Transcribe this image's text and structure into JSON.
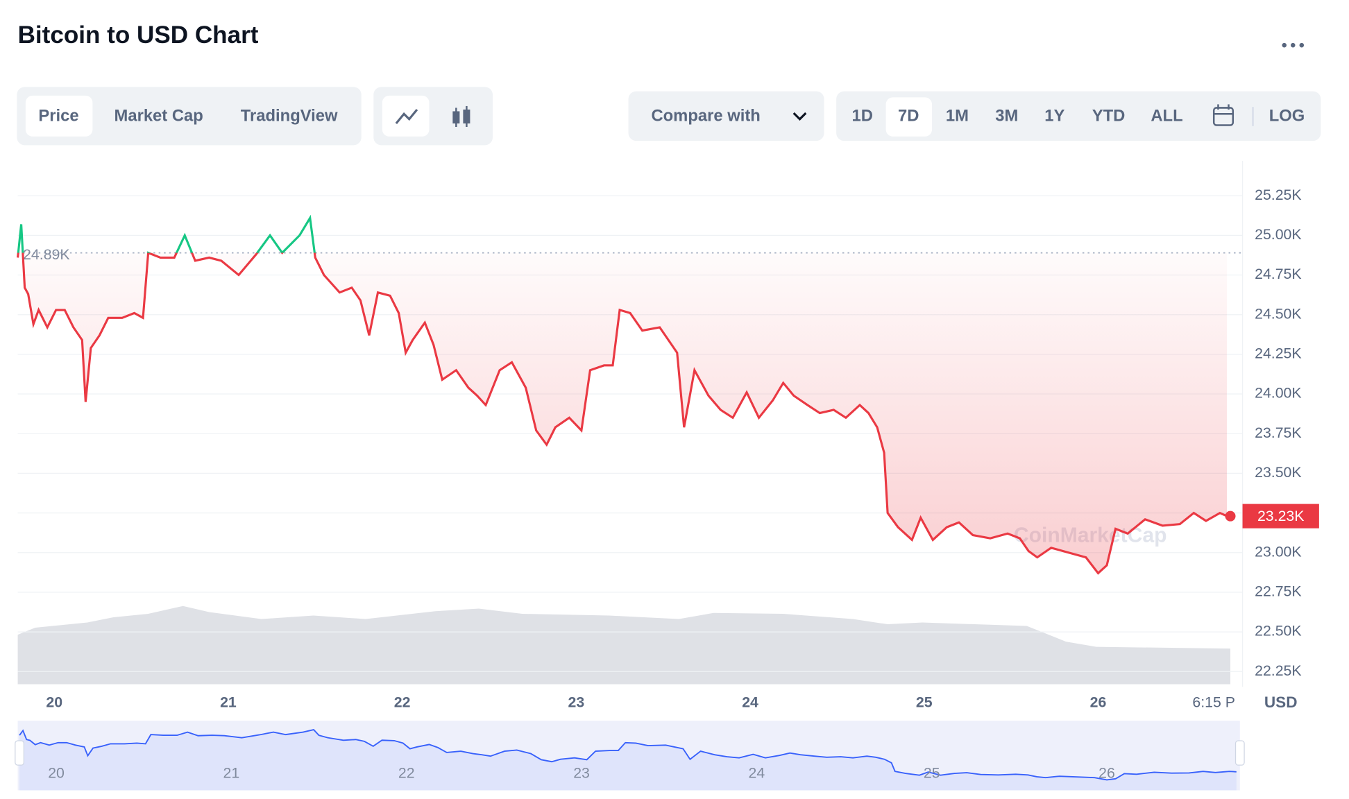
{
  "header": {
    "title": "Bitcoin to USD Chart"
  },
  "tabs": [
    "Price",
    "Market Cap",
    "TradingView"
  ],
  "compare": "Compare with",
  "ranges": [
    "1D",
    "7D",
    "1M",
    "3M",
    "1Y",
    "YTD",
    "ALL"
  ],
  "log": "LOG",
  "watermark": "CoinMarketCap",
  "chart_data": {
    "type": "line",
    "x": [
      19.79,
      19.81,
      19.83,
      19.85,
      19.88,
      19.91,
      19.96,
      20.01,
      20.06,
      20.11,
      20.16,
      20.18,
      20.21,
      20.26,
      20.31,
      20.39,
      20.46,
      20.51,
      20.54,
      20.61,
      20.69,
      20.75,
      20.81,
      20.89,
      20.96,
      21.06,
      21.16,
      21.24,
      21.31,
      21.41,
      21.47,
      21.5,
      21.55,
      21.64,
      21.71,
      21.76,
      21.81,
      21.86,
      21.93,
      21.98,
      22.02,
      22.06,
      22.13,
      22.18,
      22.23,
      22.31,
      22.38,
      22.43,
      22.48,
      22.56,
      22.63,
      22.71,
      22.77,
      22.83,
      22.88,
      22.96,
      23.03,
      23.08,
      23.16,
      23.21,
      23.25,
      23.31,
      23.38,
      23.48,
      23.53,
      23.58,
      23.62,
      23.68,
      23.76,
      23.83,
      23.9,
      23.98,
      24.05,
      24.13,
      24.19,
      24.25,
      24.33,
      24.4,
      24.48,
      24.55,
      24.63,
      24.68,
      24.73,
      24.77,
      24.79,
      24.85,
      24.93,
      24.98,
      25.05,
      25.13,
      25.2,
      25.28,
      25.38,
      25.48,
      25.55,
      25.6,
      25.65,
      25.73,
      25.83,
      25.93,
      26.0,
      26.05,
      26.1,
      26.17,
      26.27,
      26.37,
      26.47,
      26.55,
      26.62,
      26.7,
      26.74
    ],
    "values": [
      24860,
      25070,
      24670,
      24630,
      24440,
      24530,
      24420,
      24530,
      24530,
      24420,
      24340,
      23950,
      24290,
      24370,
      24480,
      24480,
      24510,
      24480,
      24890,
      24860,
      24860,
      25000,
      24840,
      24860,
      24840,
      24750,
      24880,
      25000,
      24890,
      25000,
      25110,
      24860,
      24750,
      24640,
      24670,
      24590,
      24370,
      24640,
      24620,
      24510,
      24260,
      24340,
      24450,
      24310,
      24090,
      24150,
      24040,
      23990,
      23930,
      24150,
      24200,
      24040,
      23770,
      23680,
      23790,
      23850,
      23770,
      24150,
      24180,
      24180,
      24530,
      24510,
      24400,
      24420,
      24340,
      24260,
      23790,
      24150,
      23990,
      23900,
      23850,
      24010,
      23850,
      23960,
      24070,
      23990,
      23930,
      23880,
      23900,
      23850,
      23930,
      23880,
      23790,
      23630,
      23250,
      23160,
      23080,
      23220,
      23080,
      23160,
      23190,
      23110,
      23090,
      23120,
      23090,
      23010,
      22970,
      23030,
      23000,
      22970,
      22870,
      22920,
      23150,
      23120,
      23210,
      23170,
      23180,
      23250,
      23200,
      23250,
      23230
    ],
    "color_up": "#16c784",
    "color_down": "#ea3943",
    "nav_color": "#3861fb",
    "xlim": [
      19.79,
      26.76
    ],
    "xticks": [
      20,
      21,
      22,
      23,
      24,
      25,
      26,
      {
        "value": 26.72,
        "label": "6:15 P"
      }
    ],
    "ylim": [
      22170,
      25470
    ],
    "yticks": [
      {
        "value": 22250,
        "label": "22.25K"
      },
      {
        "value": 22500,
        "label": "22.50K"
      },
      {
        "value": 22750,
        "label": "22.75K"
      },
      {
        "value": 23000,
        "label": "23.00K"
      },
      {
        "value": 23250,
        "label": "23.25K"
      },
      {
        "value": 23500,
        "label": "23.50K"
      },
      {
        "value": 23750,
        "label": "23.75K"
      },
      {
        "value": 24000,
        "label": "24.00K"
      },
      {
        "value": 24250,
        "label": "24.25K"
      },
      {
        "value": 24500,
        "label": "24.50K"
      },
      {
        "value": 24750,
        "label": "24.75K"
      },
      {
        "value": 25000,
        "label": "25.00K"
      },
      {
        "value": 25250,
        "label": "25.25K"
      }
    ],
    "reference": {
      "value": 24890,
      "label": "24.89K"
    },
    "last_price": {
      "value": 23230,
      "label": "23.23K"
    },
    "currency": "USD",
    "grid": true
  }
}
